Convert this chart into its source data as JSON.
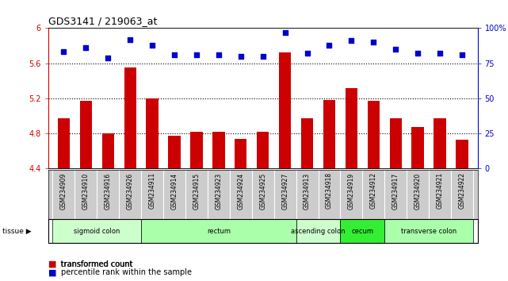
{
  "title": "GDS3141 / 219063_at",
  "samples": [
    "GSM234909",
    "GSM234910",
    "GSM234916",
    "GSM234926",
    "GSM234911",
    "GSM234914",
    "GSM234915",
    "GSM234923",
    "GSM234924",
    "GSM234925",
    "GSM234927",
    "GSM234913",
    "GSM234918",
    "GSM234919",
    "GSM234912",
    "GSM234917",
    "GSM234920",
    "GSM234921",
    "GSM234922"
  ],
  "bar_values": [
    4.97,
    5.17,
    4.8,
    5.55,
    5.2,
    4.77,
    4.82,
    4.82,
    4.74,
    4.82,
    5.72,
    4.97,
    5.18,
    5.32,
    5.17,
    4.97,
    4.87,
    4.97,
    4.73
  ],
  "dot_values": [
    83,
    86,
    79,
    92,
    88,
    81,
    81,
    81,
    80,
    80,
    97,
    82,
    88,
    91,
    90,
    85,
    82,
    82,
    81
  ],
  "ylim_left": [
    4.4,
    6.0
  ],
  "ylim_right": [
    0,
    100
  ],
  "yticks_left": [
    4.4,
    4.8,
    5.2,
    5.6,
    6.0
  ],
  "ytick_labels_left": [
    "4.4",
    "4.8",
    "5.2",
    "5.6",
    "6"
  ],
  "yticks_right": [
    0,
    25,
    50,
    75,
    100
  ],
  "ytick_labels_right": [
    "0",
    "25",
    "50",
    "75",
    "100%"
  ],
  "hlines": [
    4.8,
    5.2,
    5.6
  ],
  "bar_color": "#cc0000",
  "dot_color": "#0000cc",
  "tissue_groups": [
    {
      "label": "sigmoid colon",
      "start": 0,
      "end": 3,
      "color": "#ccffcc"
    },
    {
      "label": "rectum",
      "start": 4,
      "end": 10,
      "color": "#aaffaa"
    },
    {
      "label": "ascending colon",
      "start": 11,
      "end": 12,
      "color": "#ccffcc"
    },
    {
      "label": "cecum",
      "start": 13,
      "end": 14,
      "color": "#33ee33"
    },
    {
      "label": "transverse colon",
      "start": 15,
      "end": 18,
      "color": "#aaffaa"
    }
  ],
  "legend_red_label": "transformed count",
  "legend_blue_label": "percentile rank within the sample",
  "tissue_label": "tissue",
  "tick_bg_color": "#cccccc",
  "background_color": "#ffffff"
}
